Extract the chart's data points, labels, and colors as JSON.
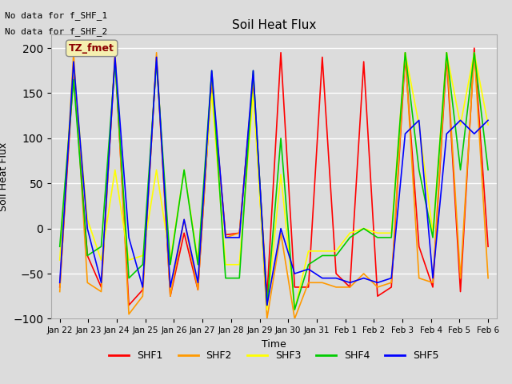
{
  "title": "Soil Heat Flux",
  "ylabel": "Soil Heat Flux",
  "xlabel": "Time",
  "annotations": [
    "No data for f_SHF_1",
    "No data for f_SHF_2"
  ],
  "legend_label": "TZ_fmet",
  "ylim": [
    -100,
    215
  ],
  "yticks": [
    -100,
    -50,
    0,
    50,
    100,
    150,
    200
  ],
  "xtick_labels": [
    "Jan 22",
    "Jan 23",
    "Jan 24",
    "Jan 25",
    "Jan 26",
    "Jan 27",
    "Jan 28",
    "Jan 29",
    "Jan 30",
    "Jan 31",
    "Feb 1",
    "Feb 2",
    "Feb 3",
    "Feb 4",
    "Feb 5",
    "Feb 6"
  ],
  "series_labels": [
    "SHF1",
    "SHF2",
    "SHF3",
    "SHF4",
    "SHF5"
  ],
  "series_colors": [
    "#ff0000",
    "#ff9900",
    "#ffff00",
    "#00cc00",
    "#0000ff"
  ],
  "background_color": "#dcdcdc",
  "SHF1": [
    -65,
    175,
    -30,
    -65,
    190,
    -85,
    -68,
    190,
    -75,
    -5,
    -68,
    165,
    -7,
    -5,
    165,
    -75,
    195,
    -65,
    -65,
    190,
    -50,
    -65,
    185,
    -75,
    -65,
    190,
    -20,
    -65,
    190,
    -70,
    200,
    -20
  ],
  "SHF2": [
    -70,
    195,
    -60,
    -70,
    195,
    -95,
    -75,
    195,
    -75,
    10,
    -68,
    167,
    -10,
    -5,
    167,
    -100,
    -5,
    -100,
    -60,
    -60,
    -65,
    -65,
    -50,
    -65,
    -60,
    195,
    -55,
    -60,
    195,
    -55,
    195,
    -55
  ],
  "SHF3": [
    -35,
    180,
    10,
    -35,
    65,
    -35,
    -30,
    65,
    -35,
    65,
    -35,
    150,
    -40,
    -40,
    150,
    -90,
    60,
    -90,
    -25,
    -25,
    -25,
    -5,
    0,
    -5,
    -5,
    195,
    115,
    -5,
    195,
    115,
    195,
    115
  ],
  "SHF4": [
    -20,
    165,
    -30,
    -20,
    185,
    -55,
    -40,
    185,
    -40,
    65,
    -40,
    175,
    -55,
    -55,
    175,
    -85,
    100,
    -90,
    -40,
    -30,
    -30,
    -10,
    0,
    -10,
    -10,
    195,
    65,
    -10,
    195,
    65,
    195,
    65
  ],
  "SHF5": [
    -60,
    185,
    0,
    -60,
    190,
    -10,
    -65,
    190,
    -65,
    10,
    -60,
    175,
    -10,
    -10,
    175,
    -85,
    0,
    -50,
    -45,
    -55,
    -55,
    -60,
    -55,
    -60,
    -55,
    105,
    120,
    -55,
    105,
    120,
    105,
    120
  ],
  "figsize": [
    6.4,
    4.8
  ],
  "dpi": 100
}
